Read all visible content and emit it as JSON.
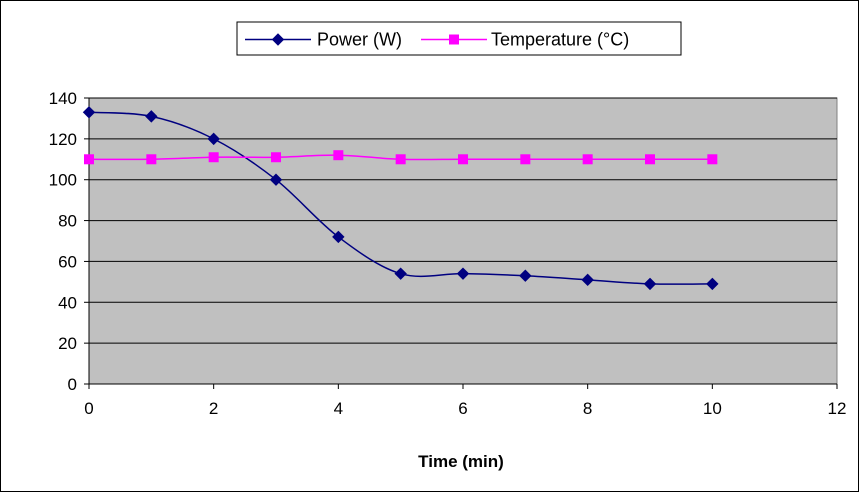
{
  "chart_data": {
    "type": "line",
    "title": "",
    "xlabel": "Time (min)",
    "ylabel": "",
    "xlim": [
      0,
      12
    ],
    "ylim": [
      0,
      140
    ],
    "xticks": [
      0,
      2,
      4,
      6,
      8,
      10,
      12
    ],
    "yticks": [
      0,
      20,
      40,
      60,
      80,
      100,
      120,
      140
    ],
    "grid": true,
    "legend_position": "top-center",
    "plot_background": "#C0C0C0",
    "x": [
      0,
      1,
      2,
      3,
      4,
      5,
      6,
      7,
      8,
      9,
      10
    ],
    "series": [
      {
        "name": "Power (W)",
        "color": "#000080",
        "marker": "diamond",
        "values": [
          133,
          131,
          120,
          100,
          72,
          54,
          54,
          53,
          51,
          49,
          49
        ]
      },
      {
        "name": "Temperature (°C)",
        "color": "#FF00FF",
        "marker": "square",
        "values": [
          110,
          110,
          111,
          111,
          112,
          110,
          110,
          110,
          110,
          110,
          110
        ]
      }
    ]
  }
}
